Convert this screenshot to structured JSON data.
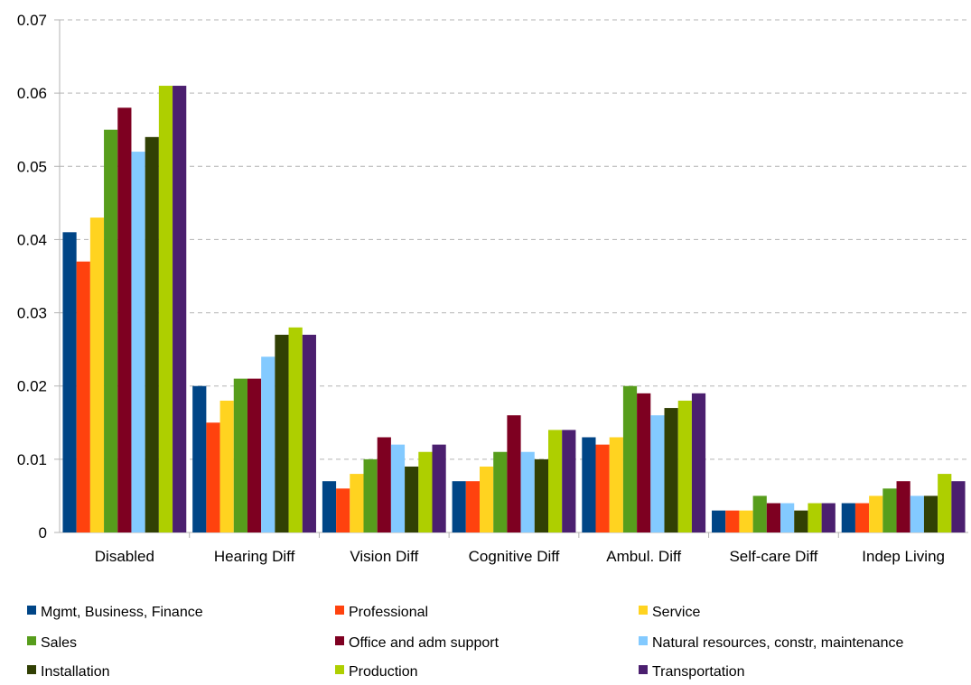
{
  "chart_data": {
    "type": "bar",
    "title": "",
    "xlabel": "",
    "ylabel": "",
    "ylim": [
      0,
      0.07
    ],
    "yticks": [
      "0",
      "0.01",
      "0.02",
      "0.03",
      "0.04",
      "0.05",
      "0.06",
      "0.07"
    ],
    "grid": true,
    "legend_position": "bottom",
    "categories": [
      "Disabled",
      "Hearing Diff",
      "Vision Diff",
      "Cognitive Diff",
      "Ambul. Diff",
      "Self-care Diff",
      "Indep Living"
    ],
    "series": [
      {
        "name": "Mgmt, Business, Finance",
        "color": "#004586",
        "values": [
          0.041,
          0.02,
          0.007,
          0.007,
          0.013,
          0.003,
          0.004
        ]
      },
      {
        "name": "Professional",
        "color": "#ff420e",
        "values": [
          0.037,
          0.015,
          0.006,
          0.007,
          0.012,
          0.003,
          0.004
        ]
      },
      {
        "name": "Service",
        "color": "#ffd320",
        "values": [
          0.043,
          0.018,
          0.008,
          0.009,
          0.013,
          0.003,
          0.005
        ]
      },
      {
        "name": "Sales",
        "color": "#579d1c",
        "values": [
          0.055,
          0.021,
          0.01,
          0.011,
          0.02,
          0.005,
          0.006
        ]
      },
      {
        "name": "Office and adm support",
        "color": "#7e0021",
        "values": [
          0.058,
          0.021,
          0.013,
          0.016,
          0.019,
          0.004,
          0.007
        ]
      },
      {
        "name": "Natural resources, constr, maintenance",
        "color": "#83caff",
        "values": [
          0.052,
          0.024,
          0.012,
          0.011,
          0.016,
          0.004,
          0.005
        ]
      },
      {
        "name": "Installation",
        "color": "#314004",
        "values": [
          0.054,
          0.027,
          0.009,
          0.01,
          0.017,
          0.003,
          0.005
        ]
      },
      {
        "name": "Production",
        "color": "#aecf00",
        "values": [
          0.061,
          0.028,
          0.011,
          0.014,
          0.018,
          0.004,
          0.008
        ]
      },
      {
        "name": "Transportation",
        "color": "#4b1f6f",
        "values": [
          0.061,
          0.027,
          0.012,
          0.014,
          0.019,
          0.004,
          0.007
        ]
      }
    ]
  }
}
